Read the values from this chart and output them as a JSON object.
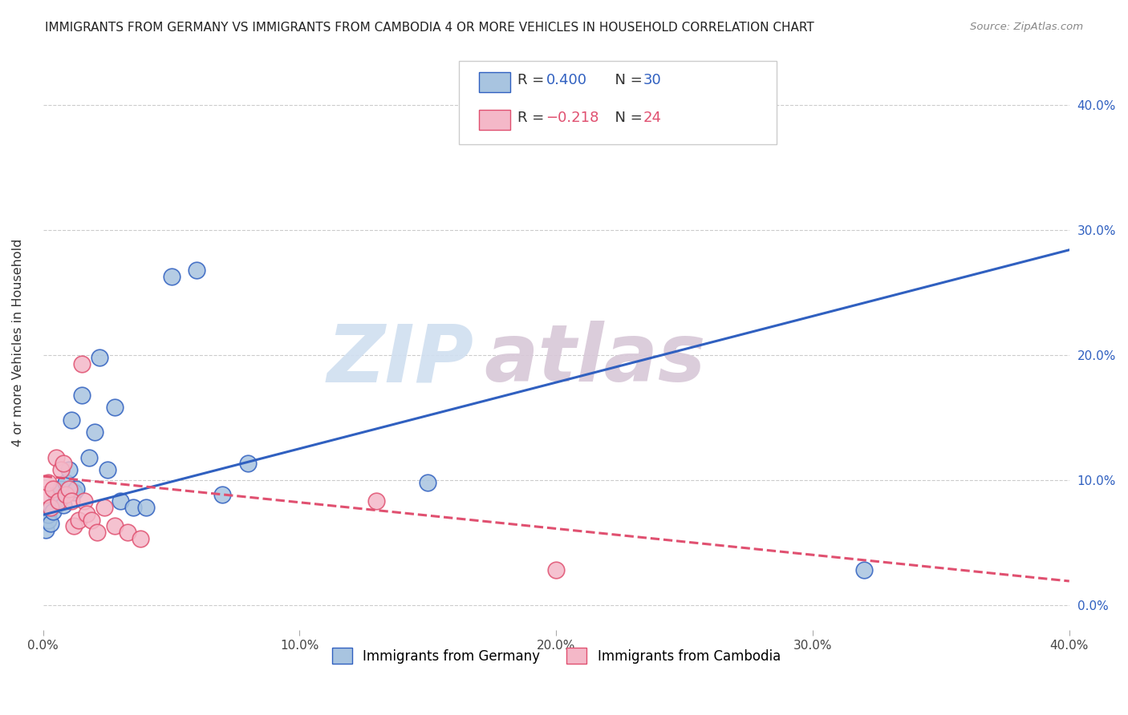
{
  "title": "IMMIGRANTS FROM GERMANY VS IMMIGRANTS FROM CAMBODIA 4 OR MORE VEHICLES IN HOUSEHOLD CORRELATION CHART",
  "source": "Source: ZipAtlas.com",
  "ylabel": "4 or more Vehicles in Household",
  "xlabel_germany": "Immigrants from Germany",
  "xlabel_cambodia": "Immigrants from Cambodia",
  "R_germany": 0.4,
  "N_germany": 30,
  "R_cambodia": -0.218,
  "N_cambodia": 24,
  "xlim": [
    0.0,
    0.4
  ],
  "ylim": [
    -0.02,
    0.44
  ],
  "color_germany": "#a8c4e0",
  "color_cambodia": "#f4b8c8",
  "line_color_germany": "#3060c0",
  "line_color_cambodia": "#e05070",
  "watermark_zip": "ZIP",
  "watermark_atlas": "atlas",
  "germany_x": [
    0.001,
    0.002,
    0.002,
    0.003,
    0.003,
    0.004,
    0.005,
    0.006,
    0.007,
    0.008,
    0.009,
    0.01,
    0.011,
    0.012,
    0.013,
    0.015,
    0.018,
    0.02,
    0.022,
    0.025,
    0.028,
    0.03,
    0.035,
    0.04,
    0.05,
    0.06,
    0.07,
    0.08,
    0.15,
    0.32
  ],
  "germany_y": [
    0.06,
    0.068,
    0.072,
    0.065,
    0.078,
    0.075,
    0.088,
    0.085,
    0.093,
    0.08,
    0.098,
    0.108,
    0.148,
    0.09,
    0.093,
    0.168,
    0.118,
    0.138,
    0.198,
    0.108,
    0.158,
    0.083,
    0.078,
    0.078,
    0.263,
    0.268,
    0.088,
    0.113,
    0.098,
    0.028
  ],
  "cambodia_x": [
    0.001,
    0.002,
    0.003,
    0.004,
    0.005,
    0.006,
    0.007,
    0.008,
    0.009,
    0.01,
    0.011,
    0.012,
    0.014,
    0.015,
    0.016,
    0.017,
    0.019,
    0.021,
    0.024,
    0.028,
    0.033,
    0.038,
    0.13,
    0.2
  ],
  "cambodia_y": [
    0.088,
    0.098,
    0.078,
    0.093,
    0.118,
    0.083,
    0.108,
    0.113,
    0.088,
    0.093,
    0.083,
    0.063,
    0.068,
    0.193,
    0.083,
    0.073,
    0.068,
    0.058,
    0.078,
    0.063,
    0.058,
    0.053,
    0.083,
    0.028
  ],
  "yticks": [
    0.0,
    0.1,
    0.2,
    0.3,
    0.4
  ],
  "ytick_labels": [
    "0.0%",
    "10.0%",
    "20.0%",
    "30.0%",
    "40.0%"
  ],
  "xticks": [
    0.0,
    0.1,
    0.2,
    0.3,
    0.4
  ],
  "xtick_labels": [
    "0.0%",
    "10.0%",
    "20.0%",
    "30.0%",
    "40.0%"
  ],
  "intercept_g": 0.072,
  "slope_g": 0.53,
  "intercept_c": 0.103,
  "slope_c": -0.21
}
